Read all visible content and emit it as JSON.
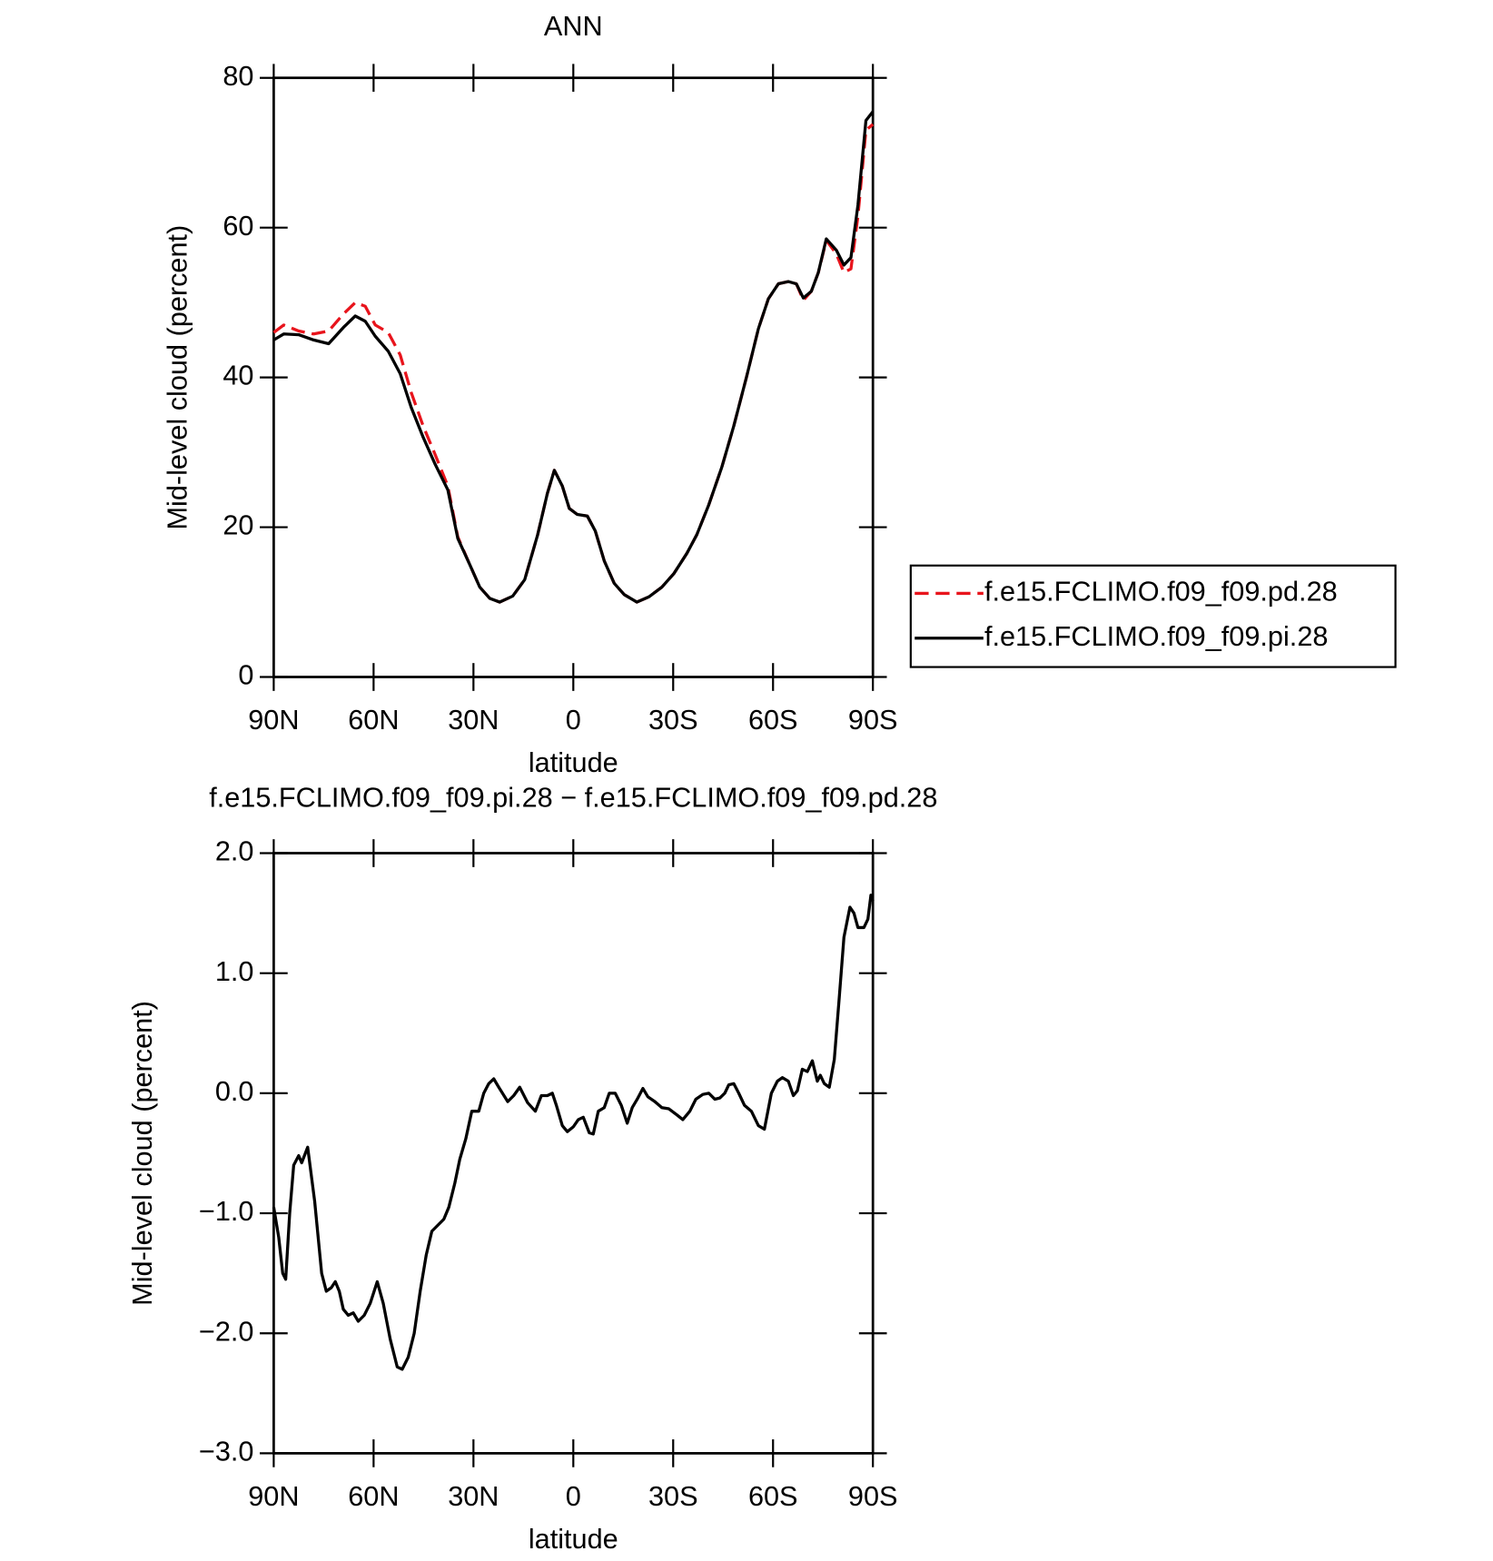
{
  "chart_data": [
    {
      "type": "line",
      "title": "ANN",
      "xlabel": "latitude",
      "ylabel": "Mid-level cloud (percent)",
      "xlim": [
        90,
        -90
      ],
      "ylim": [
        0,
        80
      ],
      "xticks": [
        {
          "value": 90,
          "label": "90N"
        },
        {
          "value": 60,
          "label": "60N"
        },
        {
          "value": 30,
          "label": "30N"
        },
        0,
        {
          "value": -30,
          "label": "30S"
        },
        {
          "value": -60,
          "label": "60S"
        },
        {
          "value": -90,
          "label": "90S"
        }
      ],
      "yticks": [
        0,
        20,
        40,
        60,
        80
      ],
      "legend": "right",
      "x": [
        90,
        87,
        82.5,
        78,
        73.5,
        69,
        65.5,
        62.5,
        59.5,
        55.6,
        52,
        48.7,
        45.1,
        41.6,
        37.7,
        34.7,
        31.1,
        28.1,
        25.1,
        22.1,
        18.2,
        14.6,
        10.7,
        7.8,
        5.7,
        3.3,
        1.2,
        -1.2,
        -4.2,
        -6.6,
        -9.3,
        -12.3,
        -15.3,
        -19.1,
        -22.7,
        -26.6,
        -30.2,
        -34.1,
        -37.1,
        -40.7,
        -44.6,
        -48.2,
        -52,
        -55.6,
        -58.6,
        -61.6,
        -64.6,
        -67,
        -69.1,
        -71.5,
        -73.6,
        -76,
        -79,
        -81.3,
        -83.4,
        -85.5,
        -87.9,
        -90
      ],
      "series": [
        {
          "name": "f.e15.FCLIMO.f09_f09.pd.28",
          "color": "#e8141c",
          "dash": true,
          "values": [
            46,
            47,
            46.2,
            45.8,
            46.2,
            48.5,
            50,
            49.5,
            47,
            46,
            43,
            38,
            33.5,
            29.8,
            25.5,
            18.7,
            15,
            12,
            10.5,
            10,
            10.8,
            13,
            19,
            24.5,
            27.6,
            25.5,
            22.5,
            21.7,
            21.5,
            19.5,
            15.5,
            12.5,
            11,
            10,
            10.7,
            12,
            13.8,
            16.5,
            19,
            23,
            28,
            33.5,
            40,
            46.5,
            50.5,
            52.5,
            52.8,
            52.5,
            50.3,
            51.5,
            54,
            58.3,
            56.5,
            54,
            54.5,
            61.5,
            73,
            73.8
          ]
        },
        {
          "name": "f.e15.FCLIMO.f09_f09.pi.28",
          "color": "#000000",
          "dash": false,
          "values": [
            45,
            45.8,
            45.7,
            45,
            44.5,
            46.7,
            48.2,
            47.5,
            45.5,
            43.5,
            40.5,
            36,
            32,
            28.5,
            25,
            18.5,
            15,
            12,
            10.5,
            10,
            10.8,
            13,
            19,
            24.5,
            27.6,
            25.5,
            22.5,
            21.7,
            21.5,
            19.5,
            15.5,
            12.5,
            11,
            10,
            10.7,
            12,
            13.8,
            16.5,
            19,
            23,
            28,
            33.5,
            40,
            46.5,
            50.5,
            52.5,
            52.8,
            52.5,
            50.6,
            51.5,
            54,
            58.5,
            57,
            55,
            56,
            63,
            74.3,
            75.5
          ]
        }
      ]
    },
    {
      "type": "line",
      "title": "f.e15.FCLIMO.f09_f09.pi.28 − f.e15.FCLIMO.f09_f09.pd.28",
      "xlabel": "latitude",
      "ylabel": "Mid-level cloud (percent)",
      "xlim": [
        90,
        -90
      ],
      "ylim": [
        -3,
        2
      ],
      "xticks": [
        {
          "value": 90,
          "label": "90N"
        },
        {
          "value": 60,
          "label": "60N"
        },
        {
          "value": 30,
          "label": "30N"
        },
        0,
        {
          "value": -30,
          "label": "30S"
        },
        {
          "value": -60,
          "label": "60S"
        },
        {
          "value": -90,
          "label": "90S"
        }
      ],
      "yticks": [
        {
          "value": 2,
          "label": "2.0"
        },
        {
          "value": 1,
          "label": "1.0"
        },
        {
          "value": 0,
          "label": "0.0"
        },
        {
          "value": -1,
          "label": "−1.0"
        },
        {
          "value": -2,
          "label": "−2.0"
        },
        {
          "value": -3,
          "label": "−3.0"
        }
      ],
      "color": "#000000",
      "x": [
        90,
        88.5,
        87.3,
        86.4,
        85.2,
        84,
        82.5,
        81.6,
        79.8,
        77.7,
        75.6,
        74.2,
        72.7,
        71.5,
        70.3,
        69.1,
        67.6,
        66.1,
        64.6,
        62.8,
        61,
        58.9,
        57.1,
        55,
        52.9,
        51.4,
        49.6,
        47.8,
        46,
        44.2,
        42.5,
        40.7,
        38.9,
        37.4,
        35.6,
        34.1,
        32.3,
        30.5,
        28.4,
        26.9,
        25.4,
        23.9,
        22.4,
        19.7,
        17.9,
        16.1,
        13.7,
        11.4,
        9.6,
        7.8,
        6.3,
        5.1,
        3.3,
        1.8,
        0,
        -1.5,
        -3,
        -4.8,
        -6,
        -7.5,
        -9.3,
        -10.8,
        -12.6,
        -14.4,
        -16.2,
        -17.7,
        -19.2,
        -20.9,
        -22.4,
        -24.5,
        -26.6,
        -28.7,
        -31.1,
        -32.9,
        -35,
        -36.8,
        -38.9,
        -40.7,
        -42.5,
        -44,
        -45.5,
        -46.7,
        -48.2,
        -49.7,
        -51.4,
        -53.5,
        -55.6,
        -57.4,
        -59.5,
        -61.3,
        -62.8,
        -64.6,
        -66.1,
        -67.3,
        -68.8,
        -70.3,
        -71.8,
        -73.3,
        -74.2,
        -75.4,
        -76.9,
        -78.4,
        -79.9,
        -81.3,
        -83.1,
        -84.3,
        -85.5,
        -87.3,
        -88.5,
        -89.4,
        -90
      ],
      "values": [
        -0.95,
        -1.2,
        -1.5,
        -1.55,
        -1.0,
        -0.6,
        -0.52,
        -0.58,
        -0.45,
        -0.9,
        -1.5,
        -1.65,
        -1.62,
        -1.57,
        -1.65,
        -1.8,
        -1.85,
        -1.83,
        -1.9,
        -1.85,
        -1.75,
        -1.57,
        -1.75,
        -2.05,
        -2.28,
        -2.3,
        -2.2,
        -2.0,
        -1.65,
        -1.35,
        -1.15,
        -1.1,
        -1.05,
        -0.95,
        -0.75,
        -0.55,
        -0.38,
        -0.15,
        -0.15,
        0.0,
        0.08,
        0.12,
        0.05,
        -0.07,
        -0.02,
        0.05,
        -0.08,
        -0.15,
        -0.02,
        -0.02,
        0.0,
        -0.1,
        -0.27,
        -0.32,
        -0.28,
        -0.22,
        -0.2,
        -0.33,
        -0.34,
        -0.15,
        -0.12,
        0.0,
        0.0,
        -0.1,
        -0.25,
        -0.12,
        -0.05,
        0.04,
        -0.03,
        -0.07,
        -0.12,
        -0.13,
        -0.18,
        -0.22,
        -0.15,
        -0.05,
        -0.01,
        0.0,
        -0.05,
        -0.04,
        0.0,
        0.07,
        0.08,
        0.0,
        -0.1,
        -0.15,
        -0.27,
        -0.3,
        0.0,
        0.1,
        0.13,
        0.1,
        -0.02,
        0.02,
        0.2,
        0.18,
        0.27,
        0.1,
        0.15,
        0.08,
        0.05,
        0.28,
        0.8,
        1.3,
        1.55,
        1.5,
        1.38,
        1.38,
        1.45,
        1.65,
        1.6
      ]
    }
  ]
}
